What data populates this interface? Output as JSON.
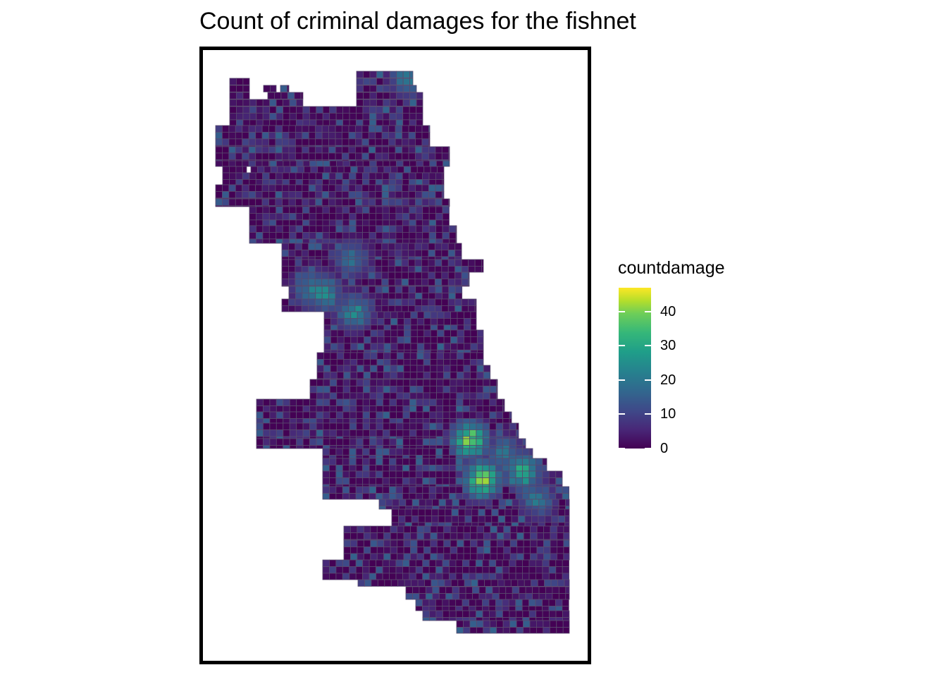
{
  "title": "Count of criminal damages for the fishnet",
  "legend": {
    "title": "countdamage",
    "ticks": [
      {
        "label": "40",
        "value": 40
      },
      {
        "label": "30",
        "value": 30
      },
      {
        "label": "20",
        "value": 20
      },
      {
        "label": "10",
        "value": 10
      },
      {
        "label": "0",
        "value": 0
      }
    ],
    "min": 0,
    "max": 47
  },
  "map": {
    "cell_border_color": "#5a4a6e",
    "low_color": "#440154",
    "high_color": "#fde725"
  }
}
